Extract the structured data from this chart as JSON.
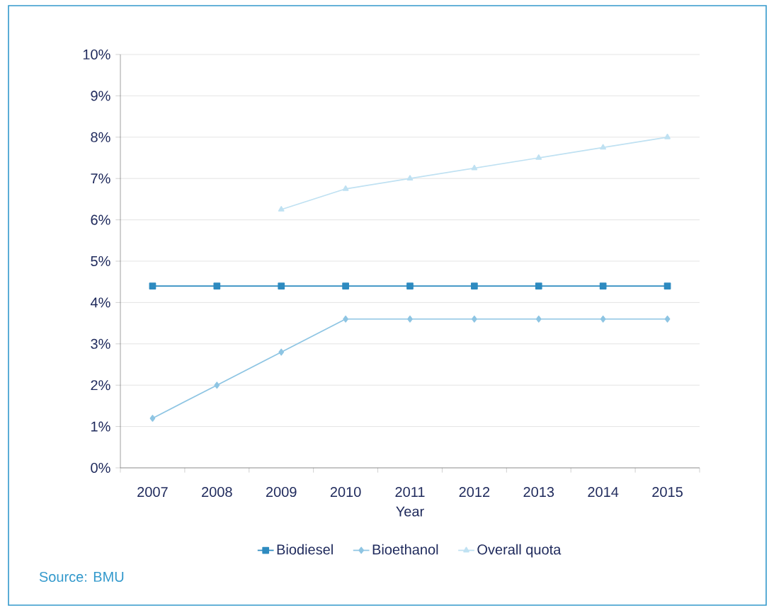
{
  "chart_data": {
    "type": "line",
    "xlabel": "Year",
    "categories": [
      "2007",
      "2008",
      "2009",
      "2010",
      "2011",
      "2012",
      "2013",
      "2014",
      "2015"
    ],
    "series": [
      {
        "name": "Biodiesel",
        "color": "#2e8bc0",
        "marker": "square",
        "values": [
          4.4,
          4.4,
          4.4,
          4.4,
          4.4,
          4.4,
          4.4,
          4.4,
          4.4
        ]
      },
      {
        "name": "Bioethanol",
        "color": "#8ec5e3",
        "marker": "diamond",
        "values": [
          1.2,
          2.0,
          2.8,
          3.6,
          3.6,
          3.6,
          3.6,
          3.6,
          3.6
        ]
      },
      {
        "name": "Overall quota",
        "color": "#bfe1f2",
        "marker": "triangle",
        "values": [
          null,
          null,
          6.25,
          6.75,
          7.0,
          7.25,
          7.5,
          7.75,
          8.0
        ]
      }
    ],
    "ylim": [
      0,
      10
    ],
    "yticks": [
      {
        "value": 0,
        "label": "0%"
      },
      {
        "value": 1,
        "label": "1%"
      },
      {
        "value": 2,
        "label": "2%"
      },
      {
        "value": 3,
        "label": "3%"
      },
      {
        "value": 4,
        "label": "4%"
      },
      {
        "value": 5,
        "label": "5%"
      },
      {
        "value": 6,
        "label": "6%"
      },
      {
        "value": 7,
        "label": "7%"
      },
      {
        "value": 8,
        "label": "8%"
      },
      {
        "value": 9,
        "label": "9%"
      },
      {
        "value": 10,
        "label": "10%"
      }
    ],
    "grid": "y",
    "legend": "bottom",
    "annotations": [
      "Source: BMU"
    ]
  }
}
